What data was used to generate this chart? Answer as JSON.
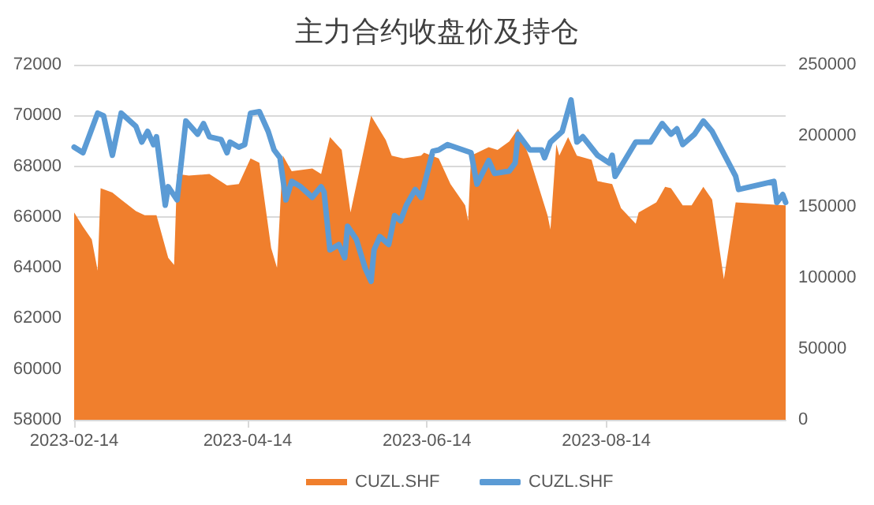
{
  "chart_data": {
    "type": "line",
    "title": "主力合约收盘价及持仓",
    "xlim": [
      "2023-02-14",
      "2023-10-14"
    ],
    "xticks": [
      "2023-02-14",
      "2023-04-14",
      "2023-06-14",
      "2023-08-14"
    ],
    "ylim": [
      58000,
      72000
    ],
    "yticks": [
      58000,
      60000,
      62000,
      64000,
      66000,
      68000,
      70000,
      72000
    ],
    "y2lim": [
      0,
      250000
    ],
    "y2ticks": [
      0,
      50000,
      100000,
      150000,
      200000,
      250000
    ],
    "grid": "y",
    "legend": "bottom",
    "marker": "none",
    "series": [
      {
        "name": "CUZL.SHF",
        "type": "area",
        "axis": "y2",
        "color": "#f07f2d",
        "x": [
          "2023-02-14",
          "2023-02-17",
          "2023-02-20",
          "2023-02-22",
          "2023-02-23",
          "2023-02-27",
          "2023-03-02",
          "2023-03-07",
          "2023-03-10",
          "2023-03-14",
          "2023-03-18",
          "2023-03-20",
          "2023-03-21",
          "2023-03-25",
          "2023-04-01",
          "2023-04-07",
          "2023-04-11",
          "2023-04-15",
          "2023-04-18",
          "2023-04-22",
          "2023-04-24",
          "2023-04-26",
          "2023-04-29",
          "2023-05-06",
          "2023-05-09",
          "2023-05-12",
          "2023-05-16",
          "2023-05-19",
          "2023-05-26",
          "2023-05-31",
          "2023-06-02",
          "2023-06-06",
          "2023-06-12",
          "2023-06-13",
          "2023-06-18",
          "2023-06-22",
          "2023-06-27",
          "2023-06-28",
          "2023-06-29",
          "2023-07-05",
          "2023-07-08",
          "2023-07-12",
          "2023-07-15",
          "2023-07-19",
          "2023-07-25",
          "2023-07-26",
          "2023-07-28",
          "2023-07-29",
          "2023-08-01",
          "2023-08-04",
          "2023-08-09",
          "2023-08-11",
          "2023-08-16",
          "2023-08-19",
          "2023-08-24",
          "2023-08-25",
          "2023-08-31",
          "2023-09-03",
          "2023-09-05",
          "2023-09-09",
          "2023-09-12",
          "2023-09-16",
          "2023-09-19",
          "2023-09-23",
          "2023-09-27",
          "2023-10-14"
        ],
        "values": [
          146000,
          136000,
          127000,
          105000,
          163000,
          160000,
          155000,
          147000,
          144000,
          144000,
          114000,
          109000,
          173000,
          172000,
          173000,
          165000,
          166000,
          184000,
          181000,
          121000,
          107000,
          186000,
          175000,
          177000,
          173000,
          199000,
          190000,
          146000,
          214000,
          197000,
          186000,
          184000,
          186000,
          188000,
          184000,
          166000,
          151000,
          140000,
          186000,
          192000,
          190000,
          196000,
          205000,
          184000,
          144000,
          134000,
          194000,
          186000,
          199000,
          186000,
          183000,
          168000,
          166000,
          149000,
          138000,
          146000,
          153000,
          164000,
          163000,
          151000,
          151000,
          164000,
          155000,
          99000,
          153000,
          151000
        ]
      },
      {
        "name": "CUZL.SHF",
        "type": "line",
        "color": "#5b9bd5",
        "x": [
          "2023-02-14",
          "2023-02-17",
          "2023-02-22",
          "2023-02-24",
          "2023-02-27",
          "2023-03-02",
          "2023-03-07",
          "2023-03-09",
          "2023-03-11",
          "2023-03-13",
          "2023-03-14",
          "2023-03-17",
          "2023-03-18",
          "2023-03-21",
          "2023-03-24",
          "2023-03-28",
          "2023-03-30",
          "2023-04-01",
          "2023-04-05",
          "2023-04-07",
          "2023-04-08",
          "2023-04-11",
          "2023-04-13",
          "2023-04-15",
          "2023-04-18",
          "2023-04-21",
          "2023-04-23",
          "2023-04-25",
          "2023-04-27",
          "2023-04-29",
          "2023-05-02",
          "2023-05-06",
          "2023-05-09",
          "2023-05-10",
          "2023-05-12",
          "2023-05-15",
          "2023-05-17",
          "2023-05-18",
          "2023-05-21",
          "2023-05-24",
          "2023-05-26",
          "2023-05-27",
          "2023-05-29",
          "2023-06-01",
          "2023-06-03",
          "2023-06-05",
          "2023-06-07",
          "2023-06-10",
          "2023-06-12",
          "2023-06-16",
          "2023-06-18",
          "2023-06-21",
          "2023-06-29",
          "2023-07-01",
          "2023-07-05",
          "2023-07-07",
          "2023-07-12",
          "2023-07-14",
          "2023-07-15",
          "2023-07-19",
          "2023-07-23",
          "2023-07-24",
          "2023-07-26",
          "2023-07-30",
          "2023-08-02",
          "2023-08-04",
          "2023-08-06",
          "2023-08-11",
          "2023-08-15",
          "2023-08-16",
          "2023-08-17",
          "2023-08-24",
          "2023-08-29",
          "2023-09-02",
          "2023-09-05",
          "2023-09-07",
          "2023-09-09",
          "2023-09-13",
          "2023-09-16",
          "2023-09-19",
          "2023-09-27",
          "2023-09-28",
          "2023-10-10",
          "2023-10-11",
          "2023-10-13",
          "2023-10-14"
        ],
        "values": [
          68750,
          68530,
          70090,
          69990,
          68430,
          70090,
          69570,
          68950,
          69370,
          68850,
          69160,
          66460,
          67190,
          66670,
          69780,
          69260,
          69680,
          69160,
          69050,
          68530,
          68950,
          68750,
          68850,
          70090,
          70150,
          69370,
          68640,
          68330,
          66670,
          67400,
          67190,
          66770,
          67190,
          66980,
          64700,
          64910,
          64390,
          65630,
          65110,
          63970,
          63460,
          64700,
          65220,
          64910,
          66050,
          65840,
          66460,
          67080,
          66770,
          68590,
          68640,
          68850,
          68530,
          67290,
          68220,
          67710,
          67810,
          68120,
          69260,
          68640,
          68640,
          68330,
          68950,
          69370,
          70610,
          68950,
          69160,
          68430,
          68120,
          68430,
          67600,
          68950,
          68950,
          69680,
          69260,
          69470,
          68850,
          69260,
          69780,
          69370,
          67600,
          67080,
          67400,
          66570,
          66880,
          66570
        ]
      }
    ]
  }
}
